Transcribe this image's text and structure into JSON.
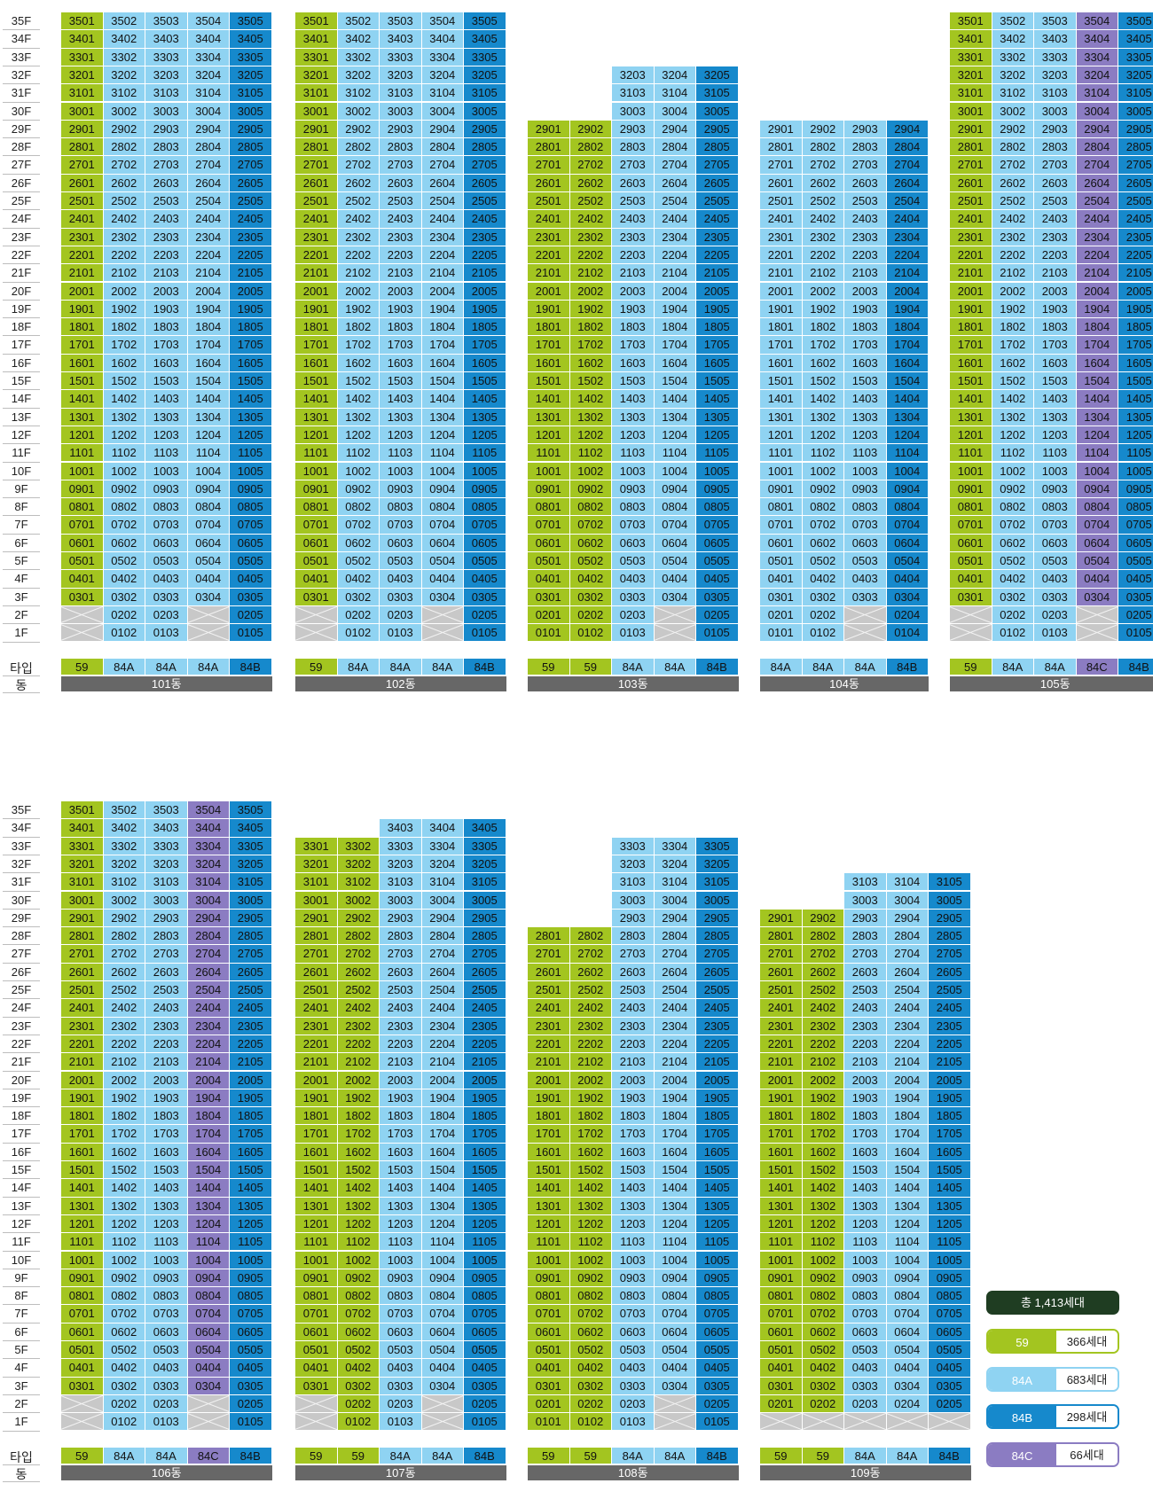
{
  "labels": {
    "type_row": "타입",
    "dong_row": "동"
  },
  "floor_labels": [
    "35F",
    "34F",
    "33F",
    "32F",
    "31F",
    "30F",
    "29F",
    "28F",
    "27F",
    "26F",
    "25F",
    "24F",
    "23F",
    "22F",
    "21F",
    "20F",
    "19F",
    "18F",
    "17F",
    "16F",
    "15F",
    "14F",
    "13F",
    "12F",
    "11F",
    "10F",
    "9F",
    "8F",
    "7F",
    "6F",
    "5F",
    "4F",
    "3F",
    "2F",
    "1F"
  ],
  "colors": {
    "59": "#a3c520",
    "84A": "#8fd3f2",
    "84B": "#1689cc",
    "84C": "#8b7cc2",
    "empty": "#c8c8c8"
  },
  "buildings": [
    {
      "name": "101동",
      "types": [
        "59",
        "84A",
        "84A",
        "84A",
        "84B"
      ],
      "columns": [
        {
          "top": 35,
          "missing": [
            1,
            2
          ]
        },
        {
          "top": 35
        },
        {
          "top": 35
        },
        {
          "top": 35,
          "missing": [
            1,
            2
          ]
        },
        {
          "top": 35
        }
      ]
    },
    {
      "name": "102동",
      "types": [
        "59",
        "84A",
        "84A",
        "84A",
        "84B"
      ],
      "columns": [
        {
          "top": 35,
          "missing": [
            1,
            2
          ]
        },
        {
          "top": 35
        },
        {
          "top": 35
        },
        {
          "top": 35,
          "missing": [
            1,
            2
          ]
        },
        {
          "top": 35
        }
      ]
    },
    {
      "name": "103동",
      "types": [
        "59",
        "59",
        "84A",
        "84A",
        "84B"
      ],
      "columns": [
        {
          "top": 29
        },
        {
          "top": 29
        },
        {
          "top": 32
        },
        {
          "top": 32,
          "missing": [
            1,
            2
          ]
        },
        {
          "top": 32
        }
      ]
    },
    {
      "name": "104동",
      "types": [
        "84A",
        "84A",
        "84A",
        "84B"
      ],
      "columns": [
        {
          "top": 29
        },
        {
          "top": 29
        },
        {
          "top": 29,
          "missing": [
            1,
            2
          ]
        },
        {
          "top": 29
        }
      ]
    },
    {
      "name": "105동",
      "types": [
        "59",
        "84A",
        "84A",
        "84C",
        "84B"
      ],
      "columns": [
        {
          "top": 35,
          "missing": [
            1,
            2
          ]
        },
        {
          "top": 35
        },
        {
          "top": 35
        },
        {
          "top": 35,
          "missing": [
            1,
            2
          ]
        },
        {
          "top": 35
        }
      ]
    },
    {
      "name": "106동",
      "types": [
        "59",
        "84A",
        "84A",
        "84C",
        "84B"
      ],
      "columns": [
        {
          "top": 35,
          "missing": [
            1,
            2
          ]
        },
        {
          "top": 35
        },
        {
          "top": 35
        },
        {
          "top": 35,
          "missing": [
            1,
            2
          ]
        },
        {
          "top": 35
        }
      ]
    },
    {
      "name": "107동",
      "types": [
        "59",
        "59",
        "84A",
        "84A",
        "84B"
      ],
      "columns": [
        {
          "top": 33,
          "missing": [
            1,
            2
          ]
        },
        {
          "top": 33
        },
        {
          "top": 34
        },
        {
          "top": 34,
          "missing": [
            1,
            2
          ]
        },
        {
          "top": 34
        }
      ]
    },
    {
      "name": "108동",
      "types": [
        "59",
        "59",
        "84A",
        "84A",
        "84B"
      ],
      "columns": [
        {
          "top": 28
        },
        {
          "top": 28
        },
        {
          "top": 33
        },
        {
          "top": 33,
          "missing": [
            1,
            2
          ]
        },
        {
          "top": 33
        }
      ]
    },
    {
      "name": "109동",
      "types": [
        "59",
        "59",
        "84A",
        "84A",
        "84B"
      ],
      "columns": [
        {
          "top": 29,
          "missing": [
            1
          ]
        },
        {
          "top": 29,
          "missing": [
            1
          ]
        },
        {
          "top": 31,
          "missing": [
            1
          ]
        },
        {
          "top": 31,
          "missing": [
            1
          ]
        },
        {
          "top": 31,
          "missing": [
            1
          ]
        }
      ]
    }
  ],
  "legend": {
    "total": "총 1,413세대",
    "items": [
      {
        "type": "59",
        "count": "366세대",
        "color": "#a3c520"
      },
      {
        "type": "84A",
        "count": "683세대",
        "color": "#8fd3f2"
      },
      {
        "type": "84B",
        "count": "298세대",
        "color": "#1689cc"
      },
      {
        "type": "84C",
        "count": "66세대",
        "color": "#8b7cc2"
      }
    ]
  }
}
